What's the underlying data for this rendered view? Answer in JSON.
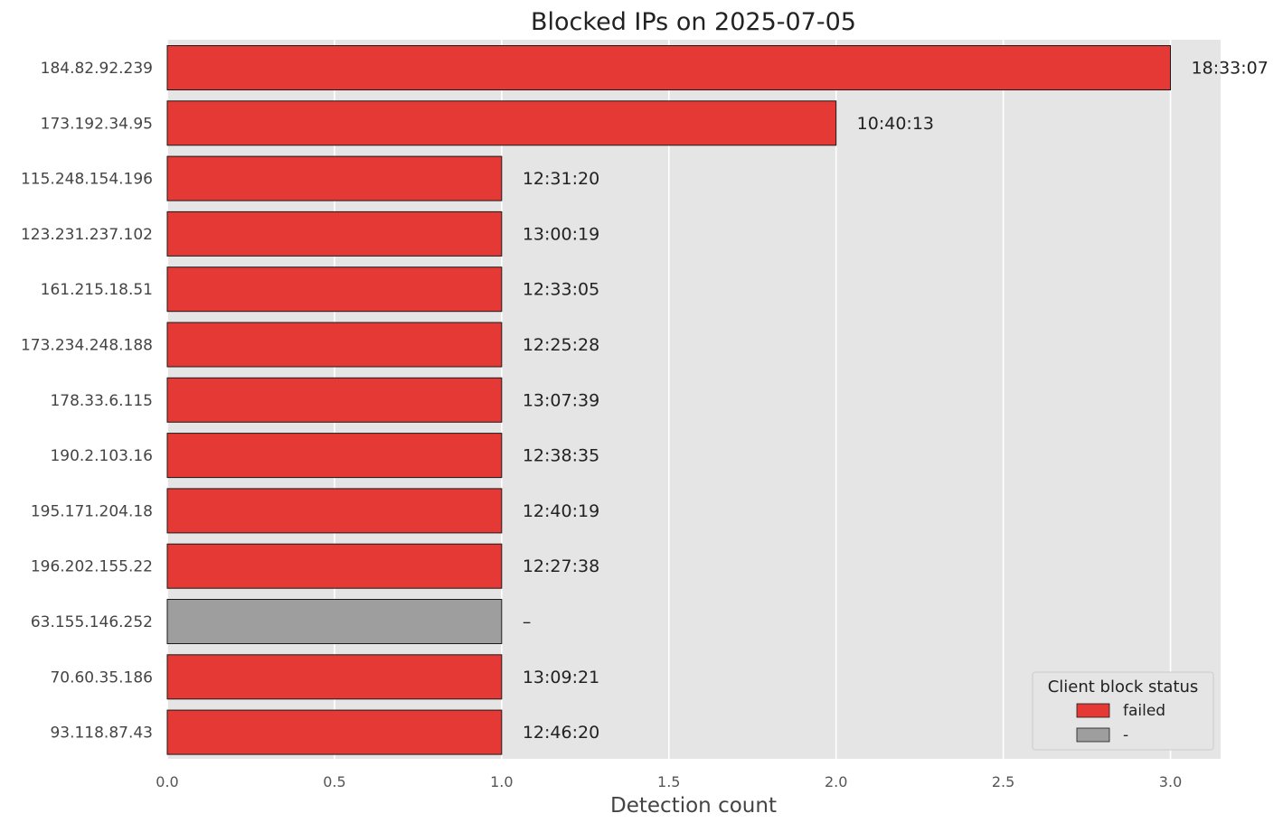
{
  "chart_data": {
    "type": "bar",
    "orientation": "horizontal",
    "title": "Blocked IPs on 2025-07-05",
    "xlabel": "Detection count",
    "ylabel": "",
    "xlim": [
      0,
      3.15
    ],
    "xticks": [
      "0.0",
      "0.5",
      "1.0",
      "1.5",
      "2.0",
      "2.5",
      "3.0"
    ],
    "grid": true,
    "categories": [
      "184.82.92.239",
      "173.192.34.95",
      "115.248.154.196",
      "123.231.237.102",
      "161.215.18.51",
      "173.234.248.188",
      "178.33.6.115",
      "190.2.103.16",
      "195.171.204.18",
      "196.202.155.22",
      "63.155.146.252",
      "70.60.35.186",
      "93.118.87.43"
    ],
    "values": [
      3,
      2,
      1,
      1,
      1,
      1,
      1,
      1,
      1,
      1,
      1,
      1,
      1
    ],
    "status": [
      "failed",
      "failed",
      "failed",
      "failed",
      "failed",
      "failed",
      "failed",
      "failed",
      "failed",
      "failed",
      "-",
      "failed",
      "failed"
    ],
    "bar_labels": [
      "18:33:07",
      "10:40:13",
      "12:31:20",
      "13:00:19",
      "12:33:05",
      "12:25:28",
      "13:07:39",
      "12:38:35",
      "12:40:19",
      "12:27:38",
      "–",
      "13:09:21",
      "12:46:20"
    ],
    "legend": {
      "title": "Client block status",
      "placement": "bottom-right",
      "entries": [
        {
          "label": "failed",
          "color": "#e53935"
        },
        {
          "label": "-",
          "color": "#9e9e9e"
        }
      ]
    },
    "colors": {
      "failed": "#e53935",
      "-": "#9e9e9e",
      "background": "#e5e5e5",
      "grid": "#ffffff",
      "edge": "#1a1a1a"
    }
  }
}
